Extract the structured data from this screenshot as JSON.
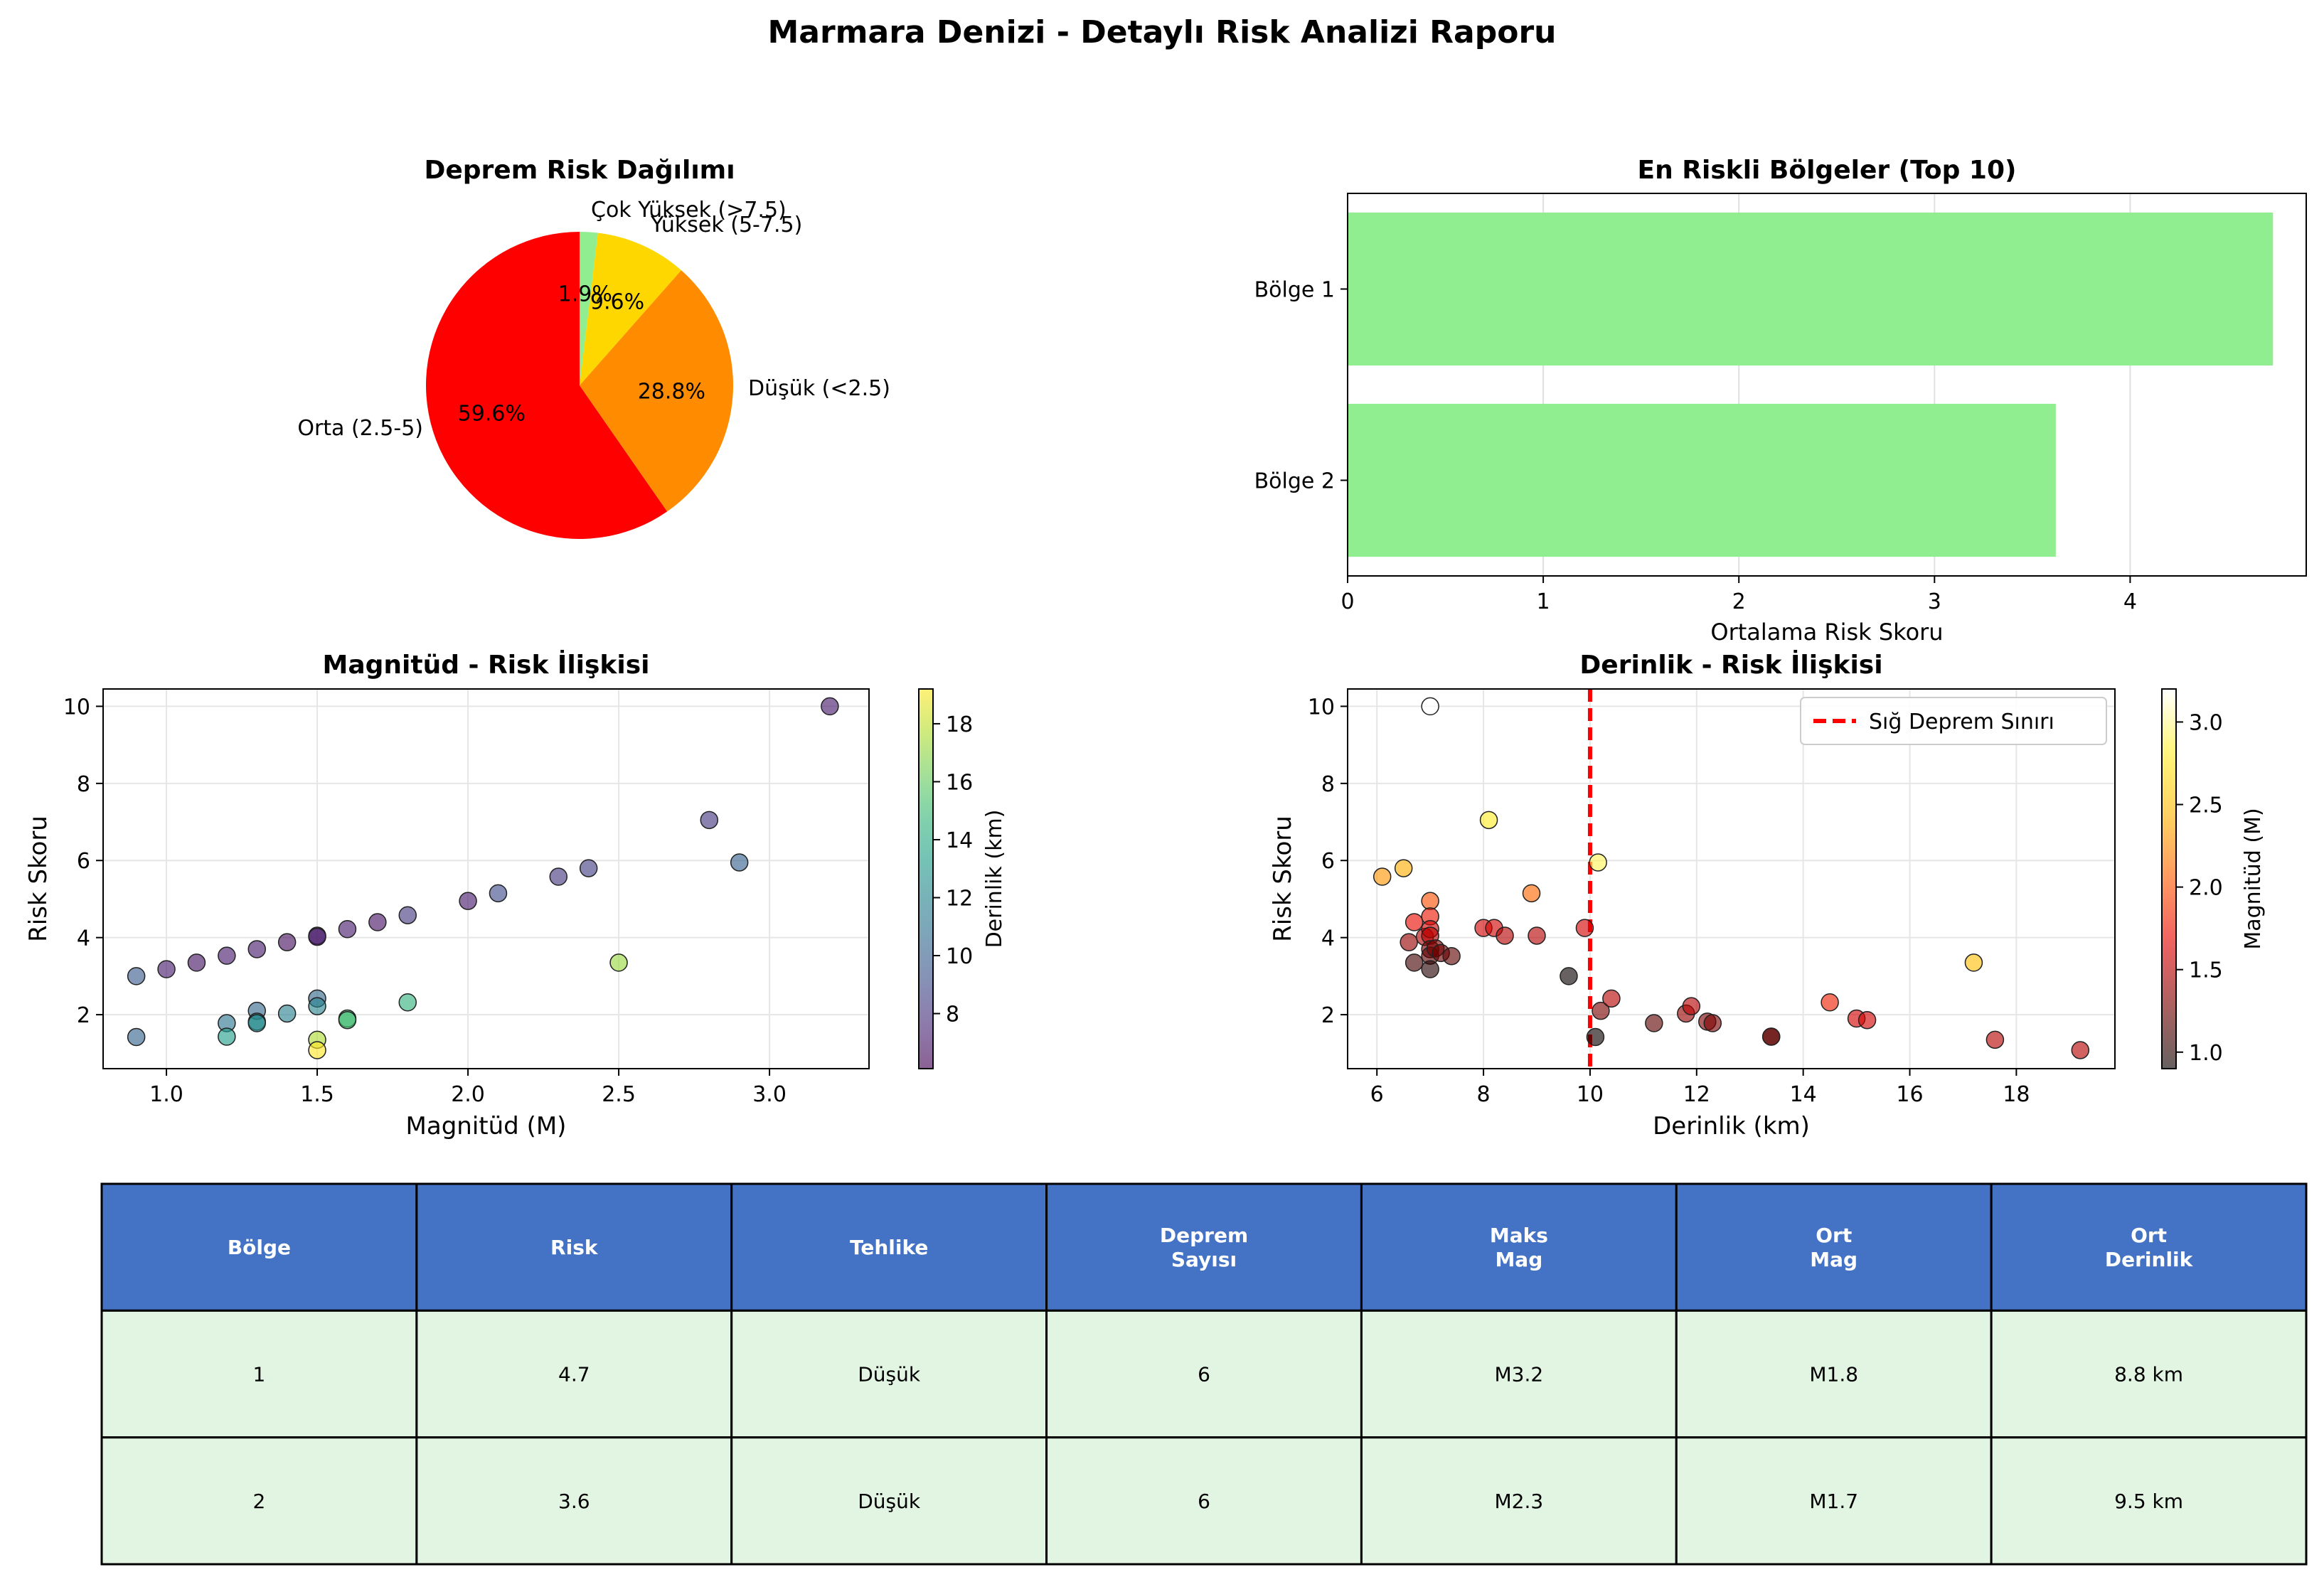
{
  "title": "Marmara Denizi - Detaylı Risk Analizi Raporu",
  "colors": {
    "pie": [
      "#ff0000",
      "#ff8c00",
      "#ffd700",
      "#90ee90"
    ],
    "bar": "#90ee90",
    "line": "#ff0000",
    "table_header": "#4472c4",
    "table_row": "#e2f5e2"
  },
  "chart_data": [
    {
      "type": "pie",
      "title": "Deprem Risk Dağılımı",
      "slices": [
        {
          "label": "Orta (2.5-5)",
          "value": 59.6,
          "pct_label": "59.6%"
        },
        {
          "label": "Düşük (<2.5)",
          "value": 28.8,
          "pct_label": "28.8%"
        },
        {
          "label": "Yüksek (5-7.5)",
          "value": 9.6,
          "pct_label": "9.6%"
        },
        {
          "label": "Çok Yüksek (>7.5)",
          "value": 1.9,
          "pct_label": "1.9%"
        }
      ]
    },
    {
      "type": "bar",
      "orientation": "horizontal",
      "title": "En Riskli Bölgeler (Top 10)",
      "categories": [
        "Bölge 1",
        "Bölge 2"
      ],
      "values": [
        4.73,
        3.62
      ],
      "xlabel": "Ortalama Risk Skoru",
      "xlim": [
        0,
        4.9
      ],
      "xticks": [
        0,
        1,
        2,
        3,
        4
      ],
      "grid": true
    },
    {
      "type": "scatter",
      "title": "Magnitüd - Risk İlişkisi",
      "xlabel": "Magnitüd (M)",
      "ylabel": "Risk Skoru",
      "xlim": [
        0.79,
        3.33
      ],
      "ylim": [
        0.6,
        10.45
      ],
      "xticks": [
        1.0,
        1.5,
        2.0,
        2.5,
        3.0
      ],
      "yticks": [
        2,
        4,
        6,
        8,
        10
      ],
      "colorbar": {
        "label": "Derinlik (km)",
        "min": 6.1,
        "max": 19.2,
        "ticks": [
          8,
          10,
          12,
          14,
          16,
          18
        ],
        "colormap": "viridis"
      },
      "points": [
        {
          "x": 0.9,
          "y": 3.0,
          "c": 9.7
        },
        {
          "x": 0.9,
          "y": 1.42,
          "c": 10.2
        },
        {
          "x": 1.0,
          "y": 3.18,
          "c": 7.0
        },
        {
          "x": 1.1,
          "y": 3.35,
          "c": 6.7
        },
        {
          "x": 1.2,
          "y": 3.53,
          "c": 7.0
        },
        {
          "x": 1.2,
          "y": 1.78,
          "c": 11.2
        },
        {
          "x": 1.2,
          "y": 1.43,
          "c": 13.4
        },
        {
          "x": 1.3,
          "y": 3.7,
          "c": 7.0
        },
        {
          "x": 1.3,
          "y": 2.1,
          "c": 10.3
        },
        {
          "x": 1.3,
          "y": 1.82,
          "c": 12.2
        },
        {
          "x": 1.3,
          "y": 1.78,
          "c": 12.3
        },
        {
          "x": 1.4,
          "y": 3.88,
          "c": 6.6
        },
        {
          "x": 1.4,
          "y": 2.03,
          "c": 11.8
        },
        {
          "x": 1.5,
          "y": 4.05,
          "c": 7.0
        },
        {
          "x": 1.5,
          "y": 4.02,
          "c": 6.9
        },
        {
          "x": 1.5,
          "y": 2.42,
          "c": 10.3
        },
        {
          "x": 1.5,
          "y": 2.22,
          "c": 11.9
        },
        {
          "x": 1.5,
          "y": 1.35,
          "c": 17.6
        },
        {
          "x": 1.5,
          "y": 1.08,
          "c": 19.2
        },
        {
          "x": 1.6,
          "y": 4.22,
          "c": 7.0
        },
        {
          "x": 1.6,
          "y": 1.9,
          "c": 15.0
        },
        {
          "x": 1.6,
          "y": 1.86,
          "c": 15.2
        },
        {
          "x": 1.7,
          "y": 4.4,
          "c": 6.7
        },
        {
          "x": 1.8,
          "y": 4.58,
          "c": 8.2
        },
        {
          "x": 1.8,
          "y": 2.32,
          "c": 14.5
        },
        {
          "x": 2.0,
          "y": 4.95,
          "c": 7.0
        },
        {
          "x": 2.1,
          "y": 5.15,
          "c": 9.0
        },
        {
          "x": 2.3,
          "y": 5.58,
          "c": 8.1
        },
        {
          "x": 2.4,
          "y": 5.8,
          "c": 8.4
        },
        {
          "x": 2.5,
          "y": 3.35,
          "c": 17.2
        },
        {
          "x": 2.8,
          "y": 7.05,
          "c": 8.1
        },
        {
          "x": 2.9,
          "y": 5.95,
          "c": 10.1
        },
        {
          "x": 3.2,
          "y": 10.0,
          "c": 7.0
        }
      ]
    },
    {
      "type": "scatter",
      "title": "Derinlik - Risk İlişkisi",
      "xlabel": "Derinlik (km)",
      "ylabel": "Risk Skoru",
      "xlim": [
        5.45,
        19.85
      ],
      "ylim": [
        0.6,
        10.45
      ],
      "xticks": [
        6,
        8,
        10,
        12,
        14,
        16,
        18
      ],
      "yticks": [
        2,
        4,
        6,
        8,
        10
      ],
      "reference_line": {
        "x": 10,
        "label": "Sığ Deprem Sınırı",
        "style": "dashed"
      },
      "legend": "top-right",
      "colorbar": {
        "label": "Magnitüd (M)",
        "min": 0.9,
        "max": 3.2,
        "ticks": [
          1.0,
          1.5,
          2.0,
          2.5,
          3.0
        ],
        "colormap": "hot"
      },
      "points": [
        {
          "x": 6.1,
          "y": 5.58,
          "c": 2.3
        },
        {
          "x": 6.5,
          "y": 5.8,
          "c": 2.4
        },
        {
          "x": 6.6,
          "y": 3.88,
          "c": 1.4
        },
        {
          "x": 6.7,
          "y": 3.35,
          "c": 1.1
        },
        {
          "x": 6.7,
          "y": 4.4,
          "c": 1.7
        },
        {
          "x": 6.9,
          "y": 4.02,
          "c": 1.5
        },
        {
          "x": 7.0,
          "y": 10.0,
          "c": 3.2
        },
        {
          "x": 7.0,
          "y": 4.95,
          "c": 2.0
        },
        {
          "x": 7.0,
          "y": 4.55,
          "c": 1.75
        },
        {
          "x": 7.0,
          "y": 4.22,
          "c": 1.6
        },
        {
          "x": 7.0,
          "y": 4.05,
          "c": 1.5
        },
        {
          "x": 7.0,
          "y": 3.7,
          "c": 1.3
        },
        {
          "x": 7.0,
          "y": 3.53,
          "c": 1.2
        },
        {
          "x": 7.0,
          "y": 3.18,
          "c": 1.0
        },
        {
          "x": 7.1,
          "y": 3.72,
          "c": 1.3
        },
        {
          "x": 7.2,
          "y": 3.6,
          "c": 1.25
        },
        {
          "x": 7.4,
          "y": 3.52,
          "c": 1.2
        },
        {
          "x": 8.0,
          "y": 4.25,
          "c": 1.6
        },
        {
          "x": 8.1,
          "y": 7.05,
          "c": 2.8
        },
        {
          "x": 8.2,
          "y": 4.25,
          "c": 1.6
        },
        {
          "x": 8.4,
          "y": 4.05,
          "c": 1.5
        },
        {
          "x": 8.9,
          "y": 5.15,
          "c": 2.1
        },
        {
          "x": 9.0,
          "y": 4.05,
          "c": 1.5
        },
        {
          "x": 9.6,
          "y": 3.0,
          "c": 0.9
        },
        {
          "x": 9.9,
          "y": 4.25,
          "c": 1.6
        },
        {
          "x": 10.1,
          "y": 1.42,
          "c": 0.9
        },
        {
          "x": 10.15,
          "y": 5.95,
          "c": 2.9
        },
        {
          "x": 10.2,
          "y": 2.1,
          "c": 1.3
        },
        {
          "x": 10.4,
          "y": 2.42,
          "c": 1.5
        },
        {
          "x": 11.2,
          "y": 1.78,
          "c": 1.2
        },
        {
          "x": 11.8,
          "y": 2.03,
          "c": 1.4
        },
        {
          "x": 11.9,
          "y": 2.22,
          "c": 1.5
        },
        {
          "x": 12.2,
          "y": 1.82,
          "c": 1.3
        },
        {
          "x": 12.3,
          "y": 1.78,
          "c": 1.3
        },
        {
          "x": 13.4,
          "y": 1.43,
          "c": 1.2
        },
        {
          "x": 13.4,
          "y": 1.43,
          "c": 1.2
        },
        {
          "x": 14.5,
          "y": 2.32,
          "c": 1.8
        },
        {
          "x": 15.0,
          "y": 1.9,
          "c": 1.6
        },
        {
          "x": 15.2,
          "y": 1.86,
          "c": 1.6
        },
        {
          "x": 17.2,
          "y": 3.35,
          "c": 2.5
        },
        {
          "x": 17.6,
          "y": 1.35,
          "c": 1.5
        },
        {
          "x": 19.2,
          "y": 1.08,
          "c": 1.5
        }
      ]
    },
    {
      "type": "table",
      "columns": [
        "Bölge",
        "Risk",
        "Tehlike",
        "Deprem\nSayısı",
        "Maks\nMag",
        "Ort\nMag",
        "Ort\nDerinlik"
      ],
      "rows": [
        [
          "1",
          "4.7",
          "Düşük",
          "6",
          "M3.2",
          "M1.8",
          "8.8 km"
        ],
        [
          "2",
          "3.6",
          "Düşük",
          "6",
          "M2.3",
          "M1.7",
          "9.5 km"
        ]
      ]
    }
  ]
}
